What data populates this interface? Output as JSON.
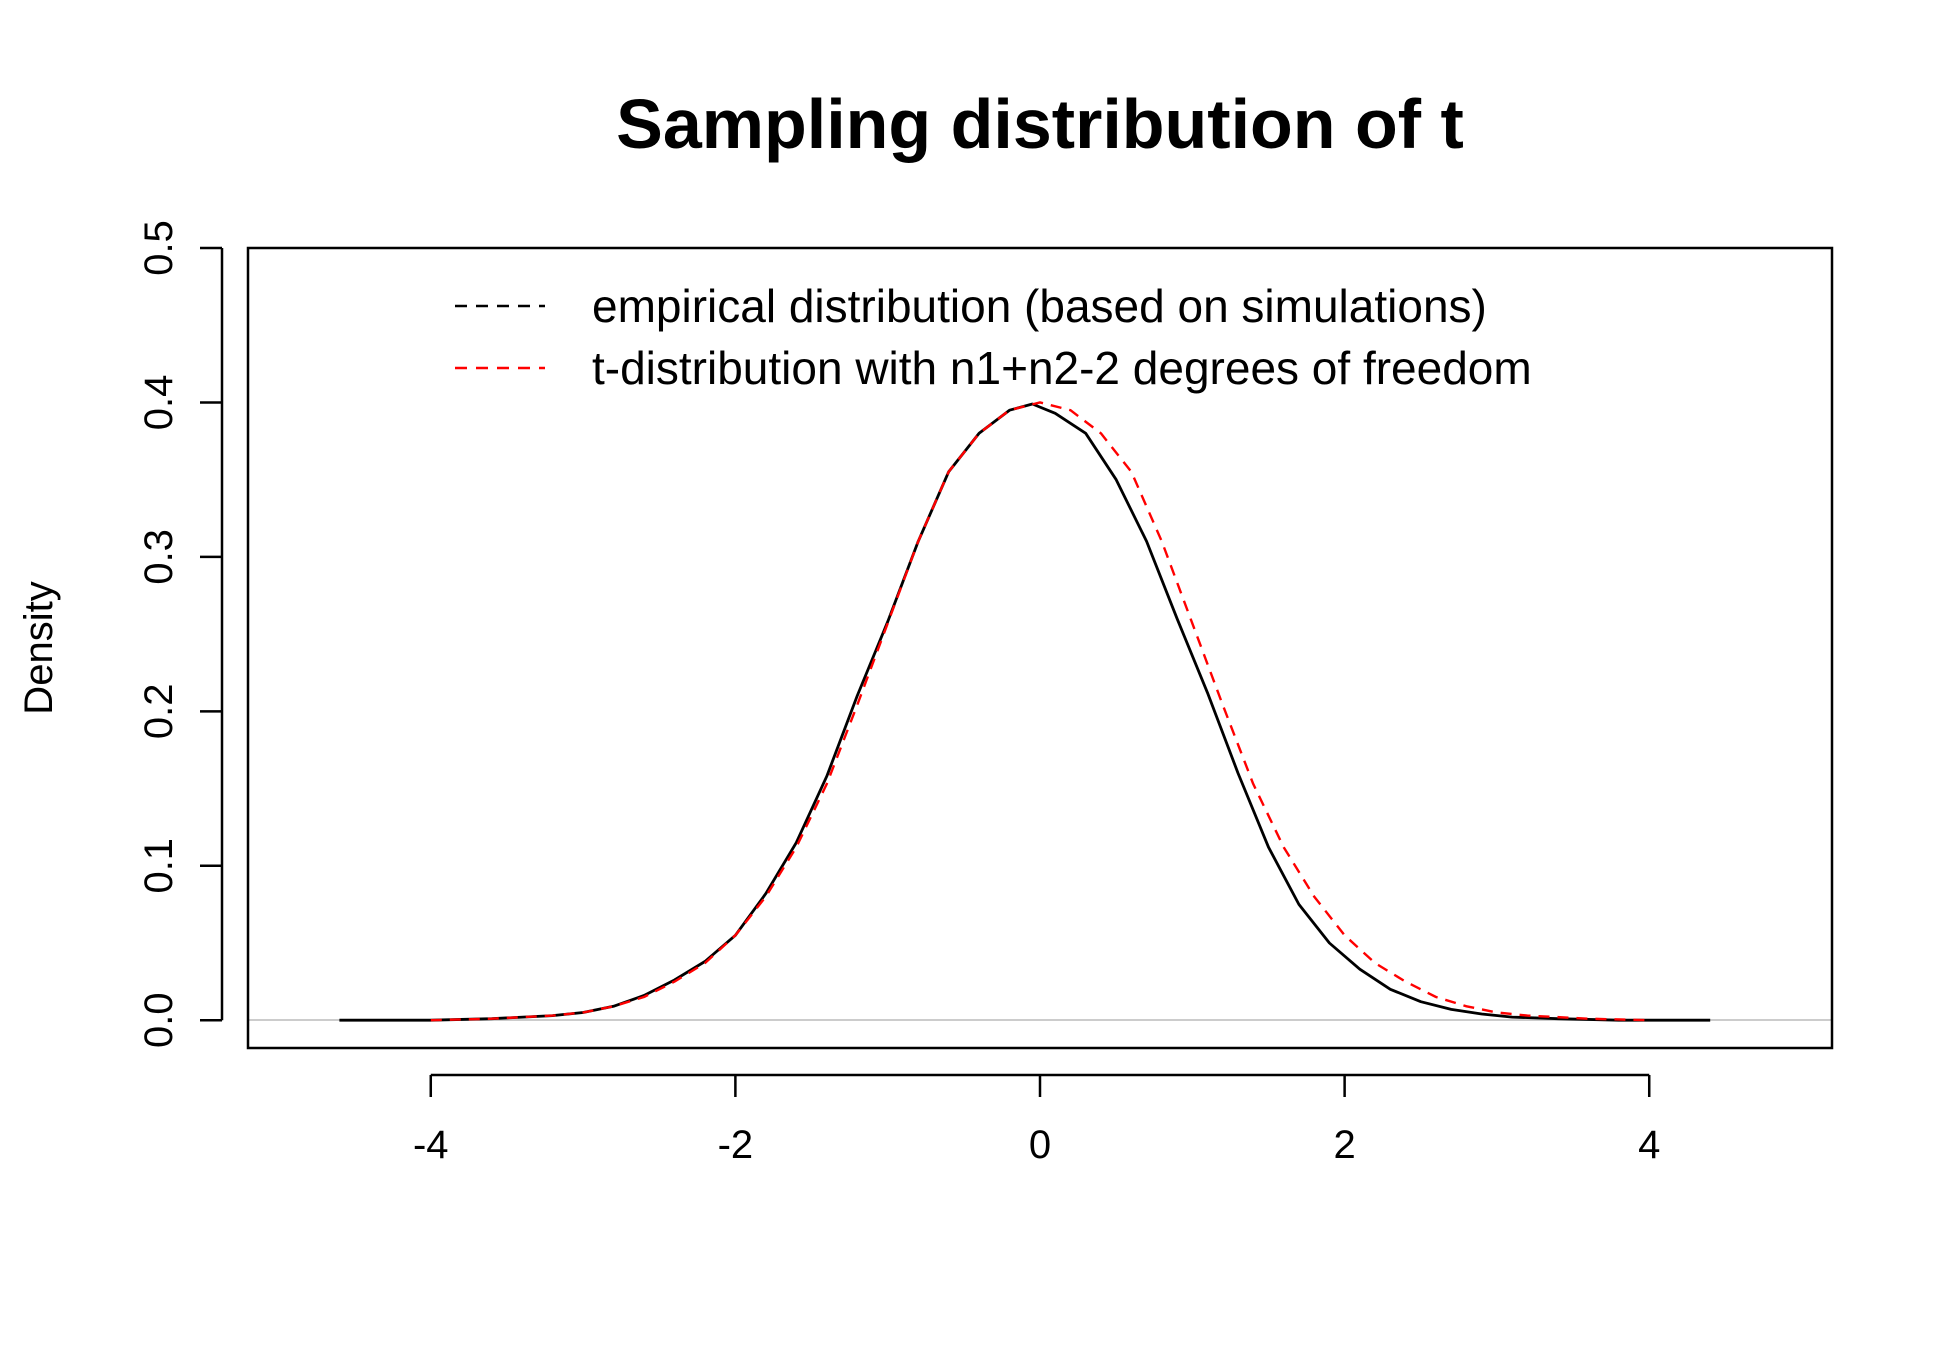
{
  "chart_data": {
    "type": "line",
    "title": "Sampling distribution of t",
    "xlabel": "",
    "ylabel": "Density",
    "xlim": [
      -5.2,
      5.2
    ],
    "ylim": [
      -0.018,
      0.5
    ],
    "xticks": [
      -4,
      -2,
      0,
      2,
      4
    ],
    "xtick_labels": [
      "-4",
      "-2",
      "0",
      "2",
      "4"
    ],
    "yticks": [
      0.0,
      0.1,
      0.2,
      0.3,
      0.4,
      0.5
    ],
    "ytick_labels": [
      "0.0",
      "0.1",
      "0.2",
      "0.3",
      "0.4",
      "0.5"
    ],
    "grid": false,
    "zero_line": true,
    "legend_placement": "top-center",
    "series": [
      {
        "name": "empirical distribution (based on simulations)",
        "color": "#000000",
        "line_style": "solid",
        "legend_line_style": "dashed",
        "x": [
          -4.6,
          -4.0,
          -3.6,
          -3.2,
          -3.0,
          -2.8,
          -2.6,
          -2.4,
          -2.2,
          -2.0,
          -1.8,
          -1.6,
          -1.4,
          -1.2,
          -1.0,
          -0.8,
          -0.6,
          -0.4,
          -0.2,
          -0.05,
          0.1,
          0.3,
          0.5,
          0.7,
          0.9,
          1.1,
          1.3,
          1.5,
          1.7,
          1.9,
          2.1,
          2.3,
          2.5,
          2.7,
          2.9,
          3.1,
          3.4,
          3.8,
          4.4
        ],
        "y": [
          0.0,
          0.0,
          0.001,
          0.003,
          0.005,
          0.009,
          0.016,
          0.026,
          0.038,
          0.055,
          0.082,
          0.115,
          0.158,
          0.21,
          0.258,
          0.31,
          0.355,
          0.38,
          0.395,
          0.399,
          0.393,
          0.38,
          0.35,
          0.31,
          0.26,
          0.212,
          0.16,
          0.112,
          0.075,
          0.05,
          0.033,
          0.02,
          0.012,
          0.007,
          0.004,
          0.002,
          0.001,
          0.0,
          0.0
        ]
      },
      {
        "name": "t-distribution with n1+n2-2 degrees of freedom",
        "color": "#ff0000",
        "line_style": "dashed",
        "legend_line_style": "dashed",
        "x": [
          -4.0,
          -3.6,
          -3.2,
          -3.0,
          -2.8,
          -2.6,
          -2.4,
          -2.2,
          -2.0,
          -1.8,
          -1.6,
          -1.4,
          -1.2,
          -1.0,
          -0.8,
          -0.6,
          -0.4,
          -0.2,
          0.0,
          0.2,
          0.4,
          0.6,
          0.8,
          1.0,
          1.2,
          1.4,
          1.6,
          1.8,
          2.0,
          2.2,
          2.4,
          2.6,
          2.8,
          3.0,
          3.2,
          3.6,
          4.0
        ],
        "y": [
          0.0,
          0.001,
          0.003,
          0.005,
          0.009,
          0.015,
          0.025,
          0.037,
          0.055,
          0.08,
          0.112,
          0.153,
          0.204,
          0.257,
          0.31,
          0.355,
          0.38,
          0.395,
          0.4,
          0.395,
          0.38,
          0.355,
          0.31,
          0.257,
          0.204,
          0.153,
          0.112,
          0.08,
          0.055,
          0.037,
          0.025,
          0.015,
          0.009,
          0.005,
          0.003,
          0.001,
          0.0
        ]
      }
    ]
  }
}
